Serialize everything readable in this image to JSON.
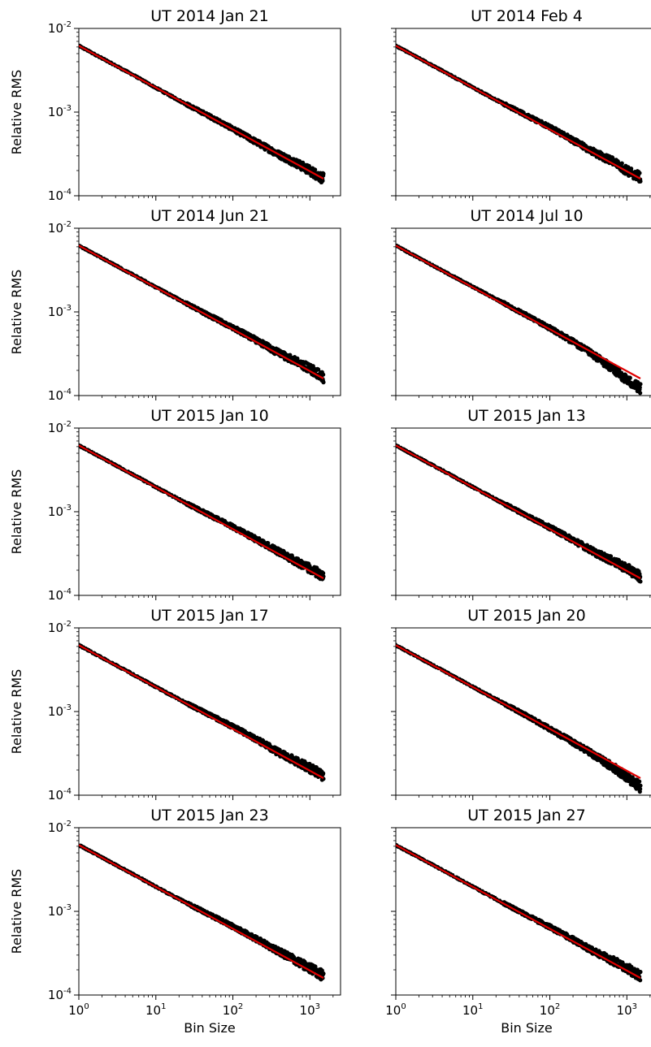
{
  "figure": {
    "xlabel": "Bin Size",
    "ylabel": "Relative RMS"
  },
  "chart_data": [
    {
      "type": "line",
      "title": "UT 2014 Jan 21",
      "xscale": "log",
      "yscale": "log",
      "xlim": [
        1,
        2500
      ],
      "ylim": [
        0.0001,
        0.01
      ],
      "xticks": [
        1,
        10,
        100,
        1000
      ],
      "yticks": [
        0.0001,
        0.001,
        0.01
      ],
      "series": [
        {
          "kind": "points",
          "color": "#000000",
          "x": [
            1,
            2,
            3,
            5,
            10,
            20,
            50,
            100,
            200,
            400,
            700,
            1000,
            1500
          ],
          "y": [
            0.0062,
            0.0044,
            0.0036,
            0.0028,
            0.00195,
            0.00138,
            0.00089,
            0.00063,
            0.00044,
            0.00031,
            0.00024,
            0.0002,
            0.00016
          ]
        },
        {
          "kind": "fit",
          "color": "#e00000",
          "x": [
            1,
            1500
          ],
          "y": [
            0.0062,
            0.00016
          ]
        }
      ]
    },
    {
      "type": "line",
      "title": "UT 2014 Feb 4",
      "xscale": "log",
      "yscale": "log",
      "xlim": [
        1,
        2500
      ],
      "ylim": [
        0.0001,
        0.01
      ],
      "xticks": [
        1,
        10,
        100,
        1000
      ],
      "yticks": [
        0.0001,
        0.001,
        0.01
      ],
      "series": [
        {
          "kind": "points",
          "color": "#000000",
          "x": [
            1,
            2,
            3,
            5,
            10,
            20,
            50,
            100,
            200,
            400,
            700,
            1000,
            1500
          ],
          "y": [
            0.0062,
            0.0044,
            0.0036,
            0.0028,
            0.00197,
            0.0014,
            0.00091,
            0.00066,
            0.00046,
            0.00032,
            0.00025,
            0.0002,
            0.000168
          ]
        },
        {
          "kind": "fit",
          "color": "#e00000",
          "x": [
            1,
            1500
          ],
          "y": [
            0.0062,
            0.00016
          ]
        }
      ]
    },
    {
      "type": "line",
      "title": "UT 2014 Jun 21",
      "xscale": "log",
      "yscale": "log",
      "xlim": [
        1,
        2500
      ],
      "ylim": [
        0.0001,
        0.01
      ],
      "xticks": [
        1,
        10,
        100,
        1000
      ],
      "yticks": [
        0.0001,
        0.001,
        0.01
      ],
      "series": [
        {
          "kind": "points",
          "color": "#000000",
          "x": [
            1,
            2,
            3,
            5,
            10,
            20,
            50,
            100,
            200,
            400,
            700,
            1000,
            1500
          ],
          "y": [
            0.0062,
            0.0044,
            0.0036,
            0.0028,
            0.00197,
            0.0014,
            0.0009,
            0.00065,
            0.00046,
            0.00032,
            0.00025,
            0.00021,
            0.000165
          ]
        },
        {
          "kind": "fit",
          "color": "#e00000",
          "x": [
            1,
            1500
          ],
          "y": [
            0.0062,
            0.00016
          ]
        }
      ]
    },
    {
      "type": "line",
      "title": "UT 2014 Jul 10",
      "xscale": "log",
      "yscale": "log",
      "xlim": [
        1,
        2500
      ],
      "ylim": [
        0.0001,
        0.01
      ],
      "xticks": [
        1,
        10,
        100,
        1000
      ],
      "yticks": [
        0.0001,
        0.001,
        0.01
      ],
      "series": [
        {
          "kind": "points",
          "color": "#000000",
          "x": [
            1,
            2,
            3,
            5,
            10,
            20,
            50,
            100,
            200,
            400,
            700,
            1000,
            1500
          ],
          "y": [
            0.0062,
            0.0044,
            0.0036,
            0.0028,
            0.002,
            0.00142,
            0.00091,
            0.00064,
            0.00044,
            0.00029,
            0.0002,
            0.000155,
            0.00012
          ]
        },
        {
          "kind": "fit",
          "color": "#e00000",
          "x": [
            1,
            1500
          ],
          "y": [
            0.0062,
            0.00016
          ]
        }
      ]
    },
    {
      "type": "line",
      "title": "UT 2015 Jan 10",
      "xscale": "log",
      "yscale": "log",
      "xlim": [
        1,
        2500
      ],
      "ylim": [
        0.0001,
        0.01
      ],
      "xticks": [
        1,
        10,
        100,
        1000
      ],
      "yticks": [
        0.0001,
        0.001,
        0.01
      ],
      "series": [
        {
          "kind": "points",
          "color": "#000000",
          "x": [
            1,
            2,
            3,
            5,
            10,
            20,
            50,
            100,
            200,
            400,
            700,
            1000,
            1500
          ],
          "y": [
            0.0062,
            0.0044,
            0.0036,
            0.0028,
            0.00197,
            0.0014,
            0.00091,
            0.00066,
            0.00047,
            0.00033,
            0.00025,
            0.00021,
            0.00017
          ]
        },
        {
          "kind": "fit",
          "color": "#e00000",
          "x": [
            1,
            1500
          ],
          "y": [
            0.0062,
            0.00016
          ]
        }
      ]
    },
    {
      "type": "line",
      "title": "UT 2015 Jan 13",
      "xscale": "log",
      "yscale": "log",
      "xlim": [
        1,
        2500
      ],
      "ylim": [
        0.0001,
        0.01
      ],
      "xticks": [
        1,
        10,
        100,
        1000
      ],
      "yticks": [
        0.0001,
        0.001,
        0.01
      ],
      "series": [
        {
          "kind": "points",
          "color": "#000000",
          "x": [
            1,
            2,
            3,
            5,
            10,
            20,
            50,
            100,
            200,
            400,
            700,
            1000,
            1500
          ],
          "y": [
            0.0062,
            0.0044,
            0.0036,
            0.0028,
            0.00197,
            0.0014,
            0.0009,
            0.00065,
            0.00046,
            0.00032,
            0.00025,
            0.00021,
            0.000168
          ]
        },
        {
          "kind": "fit",
          "color": "#e00000",
          "x": [
            1,
            1500
          ],
          "y": [
            0.0062,
            0.00016
          ]
        }
      ]
    },
    {
      "type": "line",
      "title": "UT 2015 Jan 17",
      "xscale": "log",
      "yscale": "log",
      "xlim": [
        1,
        2500
      ],
      "ylim": [
        0.0001,
        0.01
      ],
      "xticks": [
        1,
        10,
        100,
        1000
      ],
      "yticks": [
        0.0001,
        0.001,
        0.01
      ],
      "series": [
        {
          "kind": "points",
          "color": "#000000",
          "x": [
            1,
            2,
            3,
            5,
            10,
            20,
            50,
            100,
            200,
            400,
            700,
            1000,
            1500
          ],
          "y": [
            0.0062,
            0.0044,
            0.0036,
            0.0028,
            0.00197,
            0.0014,
            0.00091,
            0.00066,
            0.00047,
            0.00032,
            0.00025,
            0.00021,
            0.000172
          ]
        },
        {
          "kind": "fit",
          "color": "#e00000",
          "x": [
            1,
            1500
          ],
          "y": [
            0.0062,
            0.00016
          ]
        }
      ]
    },
    {
      "type": "line",
      "title": "UT 2015 Jan 20",
      "xscale": "log",
      "yscale": "log",
      "xlim": [
        1,
        2500
      ],
      "ylim": [
        0.0001,
        0.01
      ],
      "xticks": [
        1,
        10,
        100,
        1000
      ],
      "yticks": [
        0.0001,
        0.001,
        0.01
      ],
      "series": [
        {
          "kind": "points",
          "color": "#000000",
          "x": [
            1,
            2,
            3,
            5,
            10,
            20,
            50,
            100,
            200,
            400,
            700,
            1000,
            1500
          ],
          "y": [
            0.0062,
            0.0044,
            0.0036,
            0.0028,
            0.00197,
            0.0014,
            0.00089,
            0.00062,
            0.00043,
            0.00029,
            0.00021,
            0.000165,
            0.000125
          ]
        },
        {
          "kind": "fit",
          "color": "#e00000",
          "x": [
            1,
            1500
          ],
          "y": [
            0.0062,
            0.00016
          ]
        }
      ]
    },
    {
      "type": "line",
      "title": "UT 2015 Jan 23",
      "xscale": "log",
      "yscale": "log",
      "xlim": [
        1,
        2500
      ],
      "ylim": [
        0.0001,
        0.01
      ],
      "xticks": [
        1,
        10,
        100,
        1000
      ],
      "yticks": [
        0.0001,
        0.001,
        0.01
      ],
      "series": [
        {
          "kind": "points",
          "color": "#000000",
          "x": [
            1,
            2,
            3,
            5,
            10,
            20,
            50,
            100,
            200,
            400,
            700,
            1000,
            1500
          ],
          "y": [
            0.0062,
            0.0044,
            0.0036,
            0.0028,
            0.00197,
            0.0014,
            0.00091,
            0.00066,
            0.00047,
            0.00033,
            0.00025,
            0.00021,
            0.00017
          ]
        },
        {
          "kind": "fit",
          "color": "#e00000",
          "x": [
            1,
            1500
          ],
          "y": [
            0.0062,
            0.00016
          ]
        }
      ]
    },
    {
      "type": "line",
      "title": "UT 2015 Jan 27",
      "xscale": "log",
      "yscale": "log",
      "xlim": [
        1,
        2500
      ],
      "ylim": [
        0.0001,
        0.01
      ],
      "xticks": [
        1,
        10,
        100,
        1000
      ],
      "yticks": [
        0.0001,
        0.001,
        0.01
      ],
      "series": [
        {
          "kind": "points",
          "color": "#000000",
          "x": [
            1,
            2,
            3,
            5,
            10,
            20,
            50,
            100,
            200,
            400,
            700,
            1000,
            1500
          ],
          "y": [
            0.0062,
            0.0044,
            0.0036,
            0.0028,
            0.00197,
            0.0014,
            0.0009,
            0.00065,
            0.00046,
            0.00032,
            0.00025,
            0.00021,
            0.000168
          ]
        },
        {
          "kind": "fit",
          "color": "#e00000",
          "x": [
            1,
            1500
          ],
          "y": [
            0.0062,
            0.00016
          ]
        }
      ]
    }
  ]
}
